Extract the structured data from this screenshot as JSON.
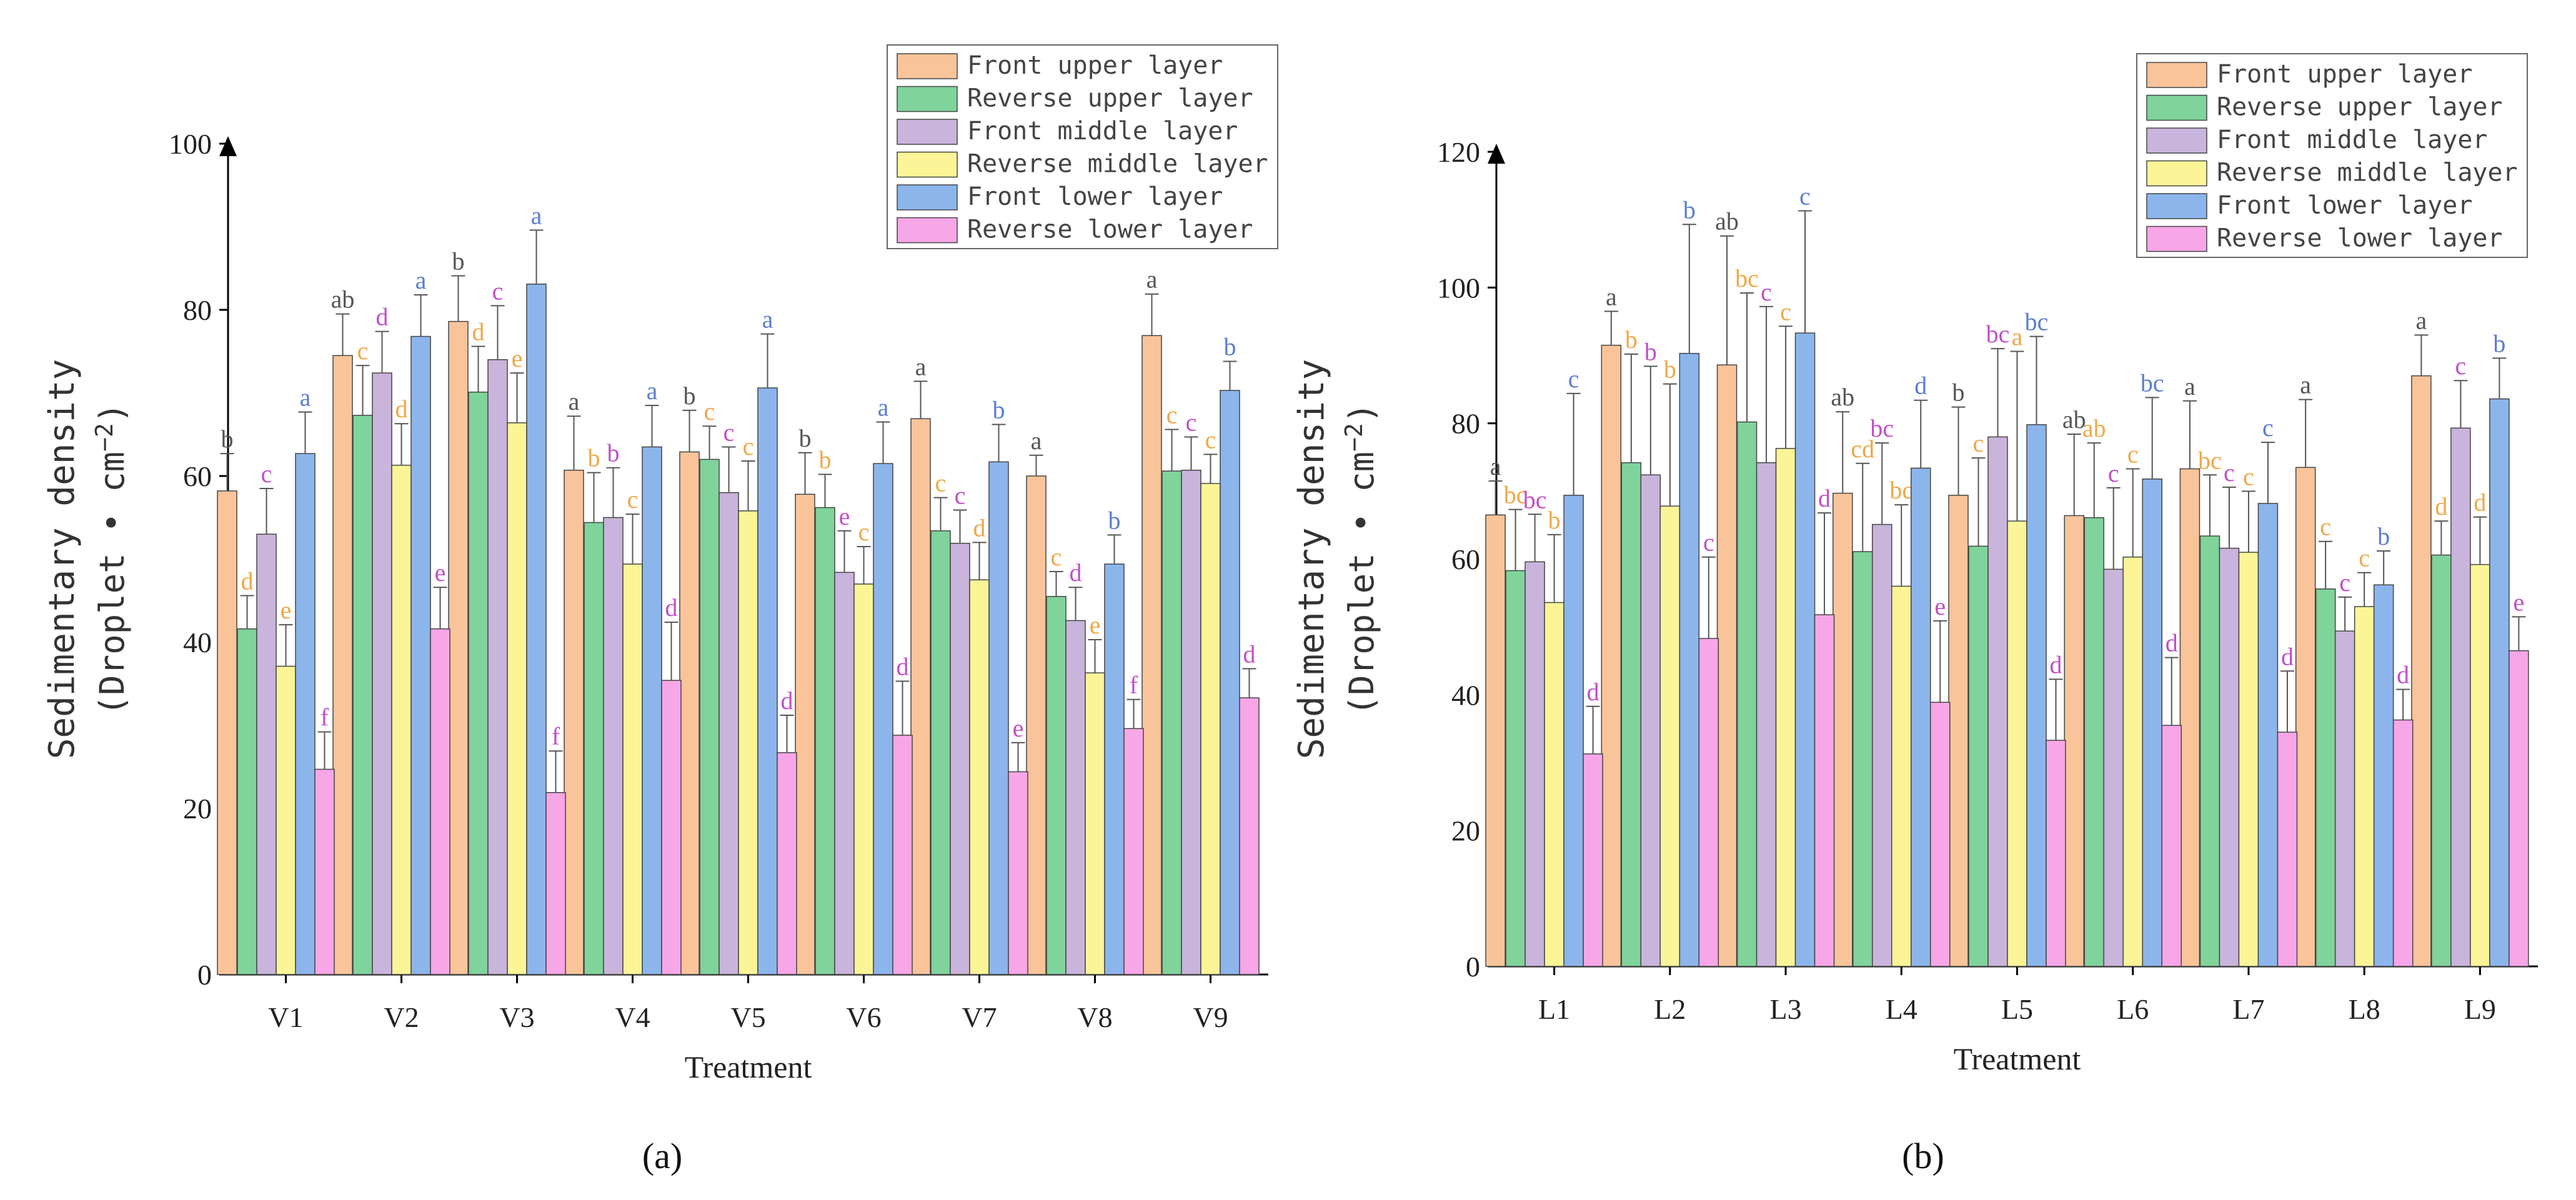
{
  "series_names": [
    "Front upper layer",
    "Reverse upper layer",
    "Front middle layer",
    "Reverse middle layer",
    "Front lower layer",
    "Reverse lower layer"
  ],
  "series_colors": [
    "#f9c49a",
    "#7fd39b",
    "#c9b4dc",
    "#fbf597",
    "#8cb5ec",
    "#f7a6e7"
  ],
  "letter_colors": [
    "#555555",
    "#f0a848",
    "#c050c8",
    "#5c7ed0"
  ],
  "chart_data": [
    {
      "type": "bar",
      "caption": "(a)",
      "title": "",
      "xlabel": "Treatment",
      "ylabel": "Sedimentary density",
      "ylabel2": "(Droplet • cm",
      "ylabel_exp": "−2",
      "ylabel_close": ")",
      "ylim": [
        0,
        100
      ],
      "yticks": [
        0,
        20,
        40,
        60,
        80,
        100
      ],
      "categories": [
        "V1",
        "V2",
        "V3",
        "V4",
        "V5",
        "V6",
        "V7",
        "V8",
        "V9"
      ],
      "series": [
        {
          "name": "Front upper layer",
          "values": [
            58.2,
            74.5,
            78.6,
            60.7,
            62.9,
            57.8,
            66.9,
            60.0,
            76.9
          ],
          "errors": [
            4.5,
            5.0,
            5.5,
            6.5,
            5.0,
            5.0,
            4.5,
            2.5,
            5.0
          ],
          "letters": [
            "b",
            "ab",
            "b",
            "a",
            "b",
            "b",
            "a",
            "a",
            "a"
          ]
        },
        {
          "name": "Reverse upper layer",
          "values": [
            41.6,
            67.3,
            70.1,
            54.4,
            62.0,
            56.2,
            53.4,
            45.5,
            60.6
          ],
          "errors": [
            4.0,
            6.0,
            5.5,
            6.0,
            4.0,
            4.0,
            4.0,
            3.0,
            5.0
          ],
          "letters": [
            "d",
            "c",
            "d",
            "b",
            "c",
            "b",
            "c",
            "c",
            "c"
          ]
        },
        {
          "name": "Front middle layer",
          "values": [
            53.0,
            72.4,
            74.0,
            55.0,
            58.0,
            48.4,
            51.9,
            42.6,
            60.7
          ],
          "errors": [
            5.5,
            5.0,
            6.5,
            6.0,
            5.5,
            5.0,
            4.0,
            4.0,
            4.0
          ],
          "letters": [
            "c",
            "d",
            "c",
            "b",
            "c",
            "e",
            "c",
            "d",
            "c"
          ]
        },
        {
          "name": "Reverse middle layer",
          "values": [
            37.1,
            61.3,
            66.4,
            49.4,
            55.8,
            47.0,
            47.5,
            36.3,
            59.1
          ],
          "errors": [
            5.0,
            5.0,
            6.0,
            6.0,
            6.0,
            4.5,
            4.5,
            4.0,
            3.5
          ],
          "letters": [
            "e",
            "d",
            "e",
            "c",
            "c",
            "c",
            "d",
            "e",
            "c"
          ]
        },
        {
          "name": "Front lower layer",
          "values": [
            62.7,
            76.8,
            83.1,
            63.5,
            70.6,
            61.5,
            61.7,
            49.4,
            70.3
          ],
          "errors": [
            5.0,
            5.0,
            6.5,
            5.0,
            6.5,
            5.0,
            4.5,
            3.5,
            3.5
          ],
          "letters": [
            "a",
            "a",
            "a",
            "a",
            "a",
            "a",
            "b",
            "b",
            "b"
          ]
        },
        {
          "name": "Reverse lower layer",
          "values": [
            24.7,
            41.6,
            21.9,
            35.4,
            26.7,
            28.8,
            24.4,
            29.6,
            33.3
          ],
          "errors": [
            4.5,
            5.0,
            5.0,
            7.0,
            4.5,
            6.5,
            3.5,
            3.5,
            3.5
          ],
          "letters": [
            "f",
            "e",
            "f",
            "d",
            "d",
            "d",
            "e",
            "f",
            "d"
          ]
        }
      ]
    },
    {
      "type": "bar",
      "caption": "(b)",
      "title": "",
      "xlabel": "Treatment",
      "ylabel": "Sedimentary density",
      "ylabel2": "(Droplet • cm",
      "ylabel_exp": "−2",
      "ylabel_close": ")",
      "ylim": [
        0,
        120
      ],
      "yticks": [
        0,
        20,
        40,
        60,
        80,
        100,
        120
      ],
      "categories": [
        "L1",
        "L2",
        "L3",
        "L4",
        "L5",
        "L6",
        "L7",
        "L8",
        "L9"
      ],
      "series": [
        {
          "name": "Front upper layer",
          "values": [
            66.5,
            91.5,
            88.6,
            69.7,
            69.4,
            66.4,
            73.3,
            73.5,
            87.0
          ],
          "errors": [
            5.0,
            5.0,
            19.0,
            12.0,
            13.0,
            12.0,
            10.0,
            10.0,
            6.0
          ],
          "letters": [
            "a",
            "a",
            "ab",
            "ab",
            "b",
            "ab",
            "a",
            "a",
            "a"
          ]
        },
        {
          "name": "Reverse upper layer",
          "values": [
            58.3,
            74.2,
            80.2,
            61.1,
            61.9,
            66.1,
            63.4,
            55.6,
            60.6
          ],
          "errors": [
            9.0,
            16.0,
            19.0,
            13.0,
            13.0,
            11.0,
            9.0,
            7.0,
            5.0
          ],
          "letters": [
            "bc",
            "b",
            "bc",
            "cd",
            "c",
            "ab",
            "bc",
            "c",
            "d"
          ]
        },
        {
          "name": "Front middle layer",
          "values": [
            59.6,
            72.4,
            74.2,
            65.1,
            78.0,
            58.5,
            61.6,
            49.4,
            79.3
          ],
          "errors": [
            7.0,
            16.0,
            23.0,
            12.0,
            13.0,
            12.0,
            9.0,
            5.0,
            7.0
          ],
          "letters": [
            "bc",
            "b",
            "c",
            "bc",
            "bc",
            "c",
            "c",
            "c",
            "c"
          ]
        },
        {
          "name": "Reverse middle layer",
          "values": [
            53.6,
            67.8,
            76.3,
            56.0,
            65.6,
            60.3,
            61.0,
            53.0,
            59.2
          ],
          "errors": [
            10.0,
            18.0,
            18.0,
            12.0,
            25.0,
            13.0,
            9.0,
            5.0,
            7.0
          ],
          "letters": [
            "b",
            "b",
            "c",
            "bc",
            "a",
            "c",
            "c",
            "c",
            "d"
          ]
        },
        {
          "name": "Front lower layer",
          "values": [
            69.4,
            90.3,
            93.3,
            73.4,
            79.8,
            71.8,
            68.2,
            56.2,
            83.6
          ],
          "errors": [
            15.0,
            19.0,
            18.0,
            10.0,
            13.0,
            12.0,
            9.0,
            5.0,
            6.0
          ],
          "letters": [
            "c",
            "b",
            "c",
            "d",
            "bc",
            "bc",
            "c",
            "b",
            "b"
          ]
        },
        {
          "name": "Reverse lower layer",
          "values": [
            31.3,
            48.3,
            51.8,
            38.9,
            33.3,
            35.5,
            34.5,
            36.3,
            46.5
          ],
          "errors": [
            7.0,
            12.0,
            15.0,
            12.0,
            9.0,
            10.0,
            9.0,
            4.5,
            5.0
          ],
          "letters": [
            "d",
            "c",
            "d",
            "e",
            "d",
            "d",
            "d",
            "d",
            "e"
          ]
        }
      ]
    }
  ]
}
